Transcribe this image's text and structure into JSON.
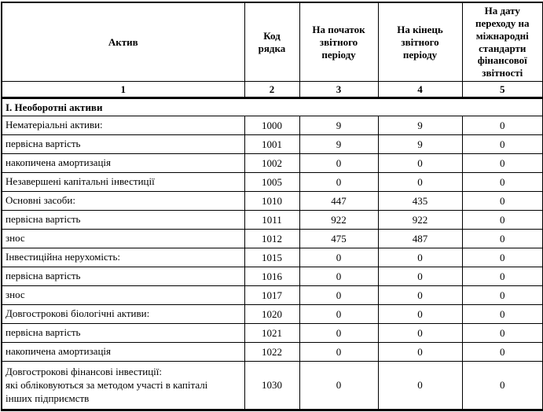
{
  "table": {
    "header": {
      "asset": "Актив",
      "code": "Код\nрядка",
      "period_start": "На початок\nзвітного\nперіоду",
      "period_end": "На кінець\nзвітного\nперіоду",
      "ifrs_transition": "На дату\nпереходу на\nміжнародні\nстандарти\nфінансової\nзвітності",
      "column_numbers": [
        "1",
        "2",
        "3",
        "4",
        "5"
      ]
    },
    "section_title": "I. Необоротні активи",
    "rows": [
      {
        "name": "Нематеріальні активи:",
        "code": "1000",
        "period_start": "9",
        "period_end": "9",
        "ifrs_transition": "0"
      },
      {
        "name": "первісна вартість",
        "code": "1001",
        "period_start": "9",
        "period_end": "9",
        "ifrs_transition": "0"
      },
      {
        "name": "накопичена амортизація",
        "code": "1002",
        "period_start": "0",
        "period_end": "0",
        "ifrs_transition": "0"
      },
      {
        "name": "Незавершені капітальні інвестиції",
        "code": "1005",
        "period_start": "0",
        "period_end": "0",
        "ifrs_transition": "0"
      },
      {
        "name": "Основні засоби:",
        "code": "1010",
        "period_start": "447",
        "period_end": "435",
        "ifrs_transition": "0"
      },
      {
        "name": "первісна вартість",
        "code": "1011",
        "period_start": "922",
        "period_end": "922",
        "ifrs_transition": "0"
      },
      {
        "name": "знос",
        "code": "1012",
        "period_start": "475",
        "period_end": "487",
        "ifrs_transition": "0"
      },
      {
        "name": "Інвестиційна нерухомість:",
        "code": "1015",
        "period_start": "0",
        "period_end": "0",
        "ifrs_transition": "0"
      },
      {
        "name": "первісна вартість",
        "code": "1016",
        "period_start": "0",
        "period_end": "0",
        "ifrs_transition": "0"
      },
      {
        "name": "знос",
        "code": "1017",
        "period_start": "0",
        "period_end": "0",
        "ifrs_transition": "0"
      },
      {
        "name": "Довгострокові біологічні активи:",
        "code": "1020",
        "period_start": "0",
        "period_end": "0",
        "ifrs_transition": "0"
      },
      {
        "name": "первісна вартість",
        "code": "1021",
        "period_start": "0",
        "period_end": "0",
        "ifrs_transition": "0"
      },
      {
        "name": "накопичена амортизація",
        "code": "1022",
        "period_start": "0",
        "period_end": "0",
        "ifrs_transition": "0"
      },
      {
        "name": "Довгострокові фінансові інвестиції:\nякі обліковуються за методом участі в капіталі\nінших підприємств",
        "code": "1030",
        "period_start": "0",
        "period_end": "0",
        "ifrs_transition": "0"
      }
    ]
  },
  "colors": {
    "text": "#000000",
    "border": "#000000",
    "background": "#ffffff"
  }
}
